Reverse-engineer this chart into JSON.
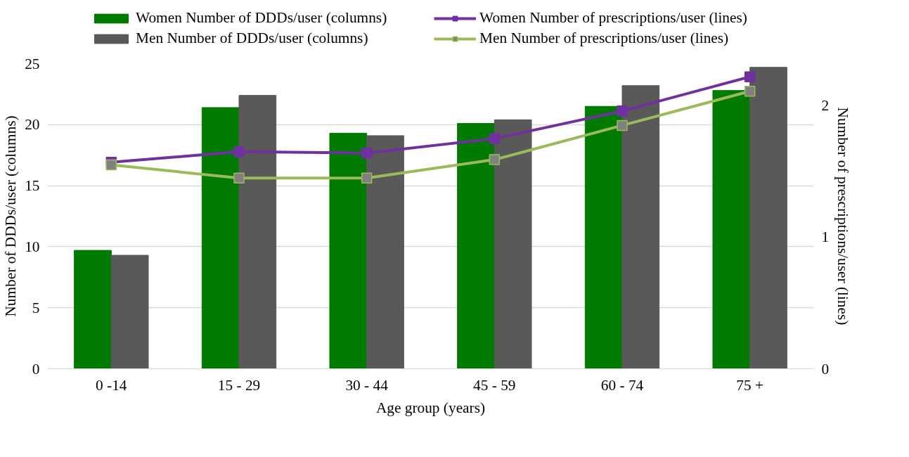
{
  "chart_data": {
    "type": "bar",
    "xlabel": "Age group (years)",
    "ylabel": "Number of DDDs/user (columns)",
    "y2label": "Number of prescriptions/user (lines)",
    "categories": [
      "0 -14",
      "15 - 29",
      "30 - 44",
      "45 - 59",
      "60 - 74",
      "75 +"
    ],
    "series": [
      {
        "name": "Women Number of DDDs/user (columns)",
        "color": "#007a00",
        "values": [
          9.7,
          21.4,
          19.3,
          20.1,
          21.5,
          22.8
        ]
      },
      {
        "name": "Men Number of DDDs/user (columns)",
        "color": "#595959",
        "values": [
          9.3,
          22.4,
          19.1,
          20.4,
          23.2,
          24.7
        ]
      },
      {
        "name": "Women Number of prescriptions/user (lines)",
        "type": "line",
        "axis": "y2",
        "color": "#7030a0",
        "values": [
          1.57,
          1.65,
          1.64,
          1.75,
          1.96,
          2.22
        ]
      },
      {
        "name": "Men Number of prescriptions/user (lines)",
        "type": "line",
        "axis": "y2",
        "color": "#9bbb59",
        "values": [
          1.55,
          1.45,
          1.45,
          1.59,
          1.85,
          2.11
        ]
      }
    ],
    "ylim": [
      0,
      25
    ],
    "yticks": [
      0,
      5,
      10,
      15,
      20,
      25
    ],
    "y2lim": [
      0,
      2.32
    ],
    "y2ticks": [
      0,
      1,
      2
    ],
    "grid": "y",
    "legend": "top",
    "marker": "square",
    "line_style": "solid"
  }
}
